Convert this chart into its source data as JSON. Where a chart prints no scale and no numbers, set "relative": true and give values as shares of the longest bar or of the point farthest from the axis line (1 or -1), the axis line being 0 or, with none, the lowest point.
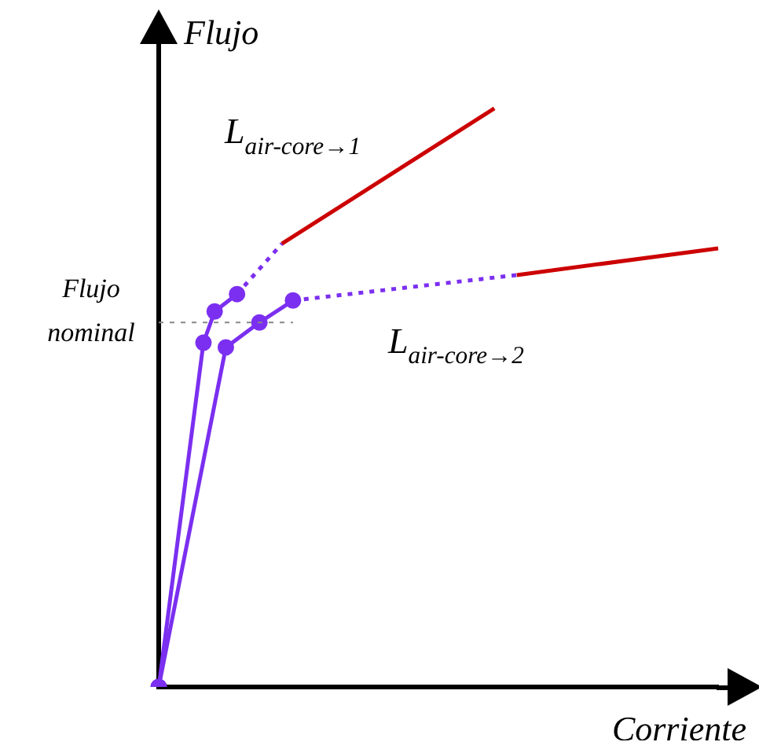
{
  "chart_data": {
    "type": "line",
    "relative": true,
    "xlabel": "Corriente",
    "ylabel": "Flujo",
    "legend": false,
    "grid": false,
    "categories": [
      null,
      null,
      null,
      null,
      null,
      null,
      null,
      null,
      null,
      null,
      null,
      null,
      null,
      null,
      null,
      null,
      null,
      null,
      null,
      null,
      null,
      null,
      null,
      null,
      null,
      null,
      null,
      null,
      null,
      null,
      null,
      null,
      null,
      null,
      null,
      null,
      null,
      null,
      null,
      null,
      null,
      null,
      null,
      null,
      null,
      null,
      null,
      null,
      null,
      null,
      null
    ],
    "series": [
      {
        "color": "#7b2ff0",
        "marker": "circle",
        "line_style": "solid",
        "values": [
          0,
          null,
          null,
          null,
          0.595,
          0.649,
          null,
          0.679,
          null,
          null,
          null,
          null,
          null,
          null,
          null,
          null,
          null,
          null,
          null,
          null,
          null,
          null,
          null,
          null,
          null,
          null,
          null,
          null,
          null,
          null,
          null,
          null,
          null,
          null,
          null,
          null,
          null,
          null,
          null,
          null,
          null,
          null,
          null,
          null,
          null,
          null,
          null,
          null,
          null,
          null,
          null
        ]
      },
      {
        "color": "#7b2ff0",
        "marker": "none",
        "line_style": "dotted",
        "values": [
          null,
          null,
          null,
          null,
          null,
          null,
          null,
          0.679,
          null,
          null,
          null,
          0.766,
          null,
          null,
          null,
          null,
          null,
          null,
          null,
          null,
          null,
          null,
          null,
          null,
          null,
          null,
          null,
          null,
          null,
          null,
          null,
          null,
          null,
          null,
          null,
          null,
          null,
          null,
          null,
          null,
          null,
          null,
          null,
          null,
          null,
          null,
          null,
          null,
          null,
          null,
          null
        ]
      },
      {
        "color": "#cc0000",
        "marker": "none",
        "line_style": "solid",
        "values": [
          null,
          null,
          null,
          null,
          null,
          null,
          null,
          null,
          null,
          null,
          null,
          0.766,
          null,
          null,
          null,
          null,
          null,
          null,
          null,
          null,
          null,
          null,
          null,
          null,
          null,
          null,
          null,
          null,
          null,
          null,
          1.0,
          null,
          null,
          null,
          null,
          null,
          null,
          null,
          null,
          null,
          null,
          null,
          null,
          null,
          null,
          null,
          null,
          null,
          null,
          null,
          null
        ]
      },
      {
        "color": "#7b2ff0",
        "marker": "circle",
        "line_style": "solid",
        "values": [
          0,
          null,
          null,
          null,
          null,
          null,
          0.587,
          null,
          null,
          0.63,
          null,
          null,
          0.668,
          null,
          null,
          null,
          null,
          null,
          null,
          null,
          null,
          null,
          null,
          null,
          null,
          null,
          null,
          null,
          null,
          null,
          null,
          null,
          null,
          null,
          null,
          null,
          null,
          null,
          null,
          null,
          null,
          null,
          null,
          null,
          null,
          null,
          null,
          null,
          null,
          null,
          null
        ]
      },
      {
        "color": "#7b2ff0",
        "marker": "none",
        "line_style": "dotted",
        "values": [
          null,
          null,
          null,
          null,
          null,
          null,
          null,
          null,
          null,
          null,
          null,
          null,
          0.668,
          null,
          null,
          null,
          null,
          null,
          null,
          null,
          null,
          null,
          null,
          null,
          null,
          null,
          null,
          null,
          null,
          null,
          null,
          null,
          0.712,
          null,
          null,
          null,
          null,
          null,
          null,
          null,
          null,
          null,
          null,
          null,
          null,
          null,
          null,
          null,
          null,
          null,
          null
        ]
      },
      {
        "color": "#cc0000",
        "marker": "none",
        "line_style": "solid",
        "values": [
          null,
          null,
          null,
          null,
          null,
          null,
          null,
          null,
          null,
          null,
          null,
          null,
          null,
          null,
          null,
          null,
          null,
          null,
          null,
          null,
          null,
          null,
          null,
          null,
          null,
          null,
          null,
          null,
          null,
          null,
          null,
          null,
          0.712,
          null,
          null,
          null,
          null,
          null,
          null,
          null,
          null,
          null,
          null,
          null,
          null,
          null,
          null,
          null,
          null,
          null,
          0.758
        ]
      }
    ],
    "ref_lines": [
      {
        "axis": "y",
        "value": 0.63,
        "label": "Flujo nominal",
        "color": "#888888",
        "line_style": "dotted"
      }
    ],
    "annotations": [
      "L$_{air-core→1}$",
      "L$_{air-core→2}$"
    ]
  }
}
